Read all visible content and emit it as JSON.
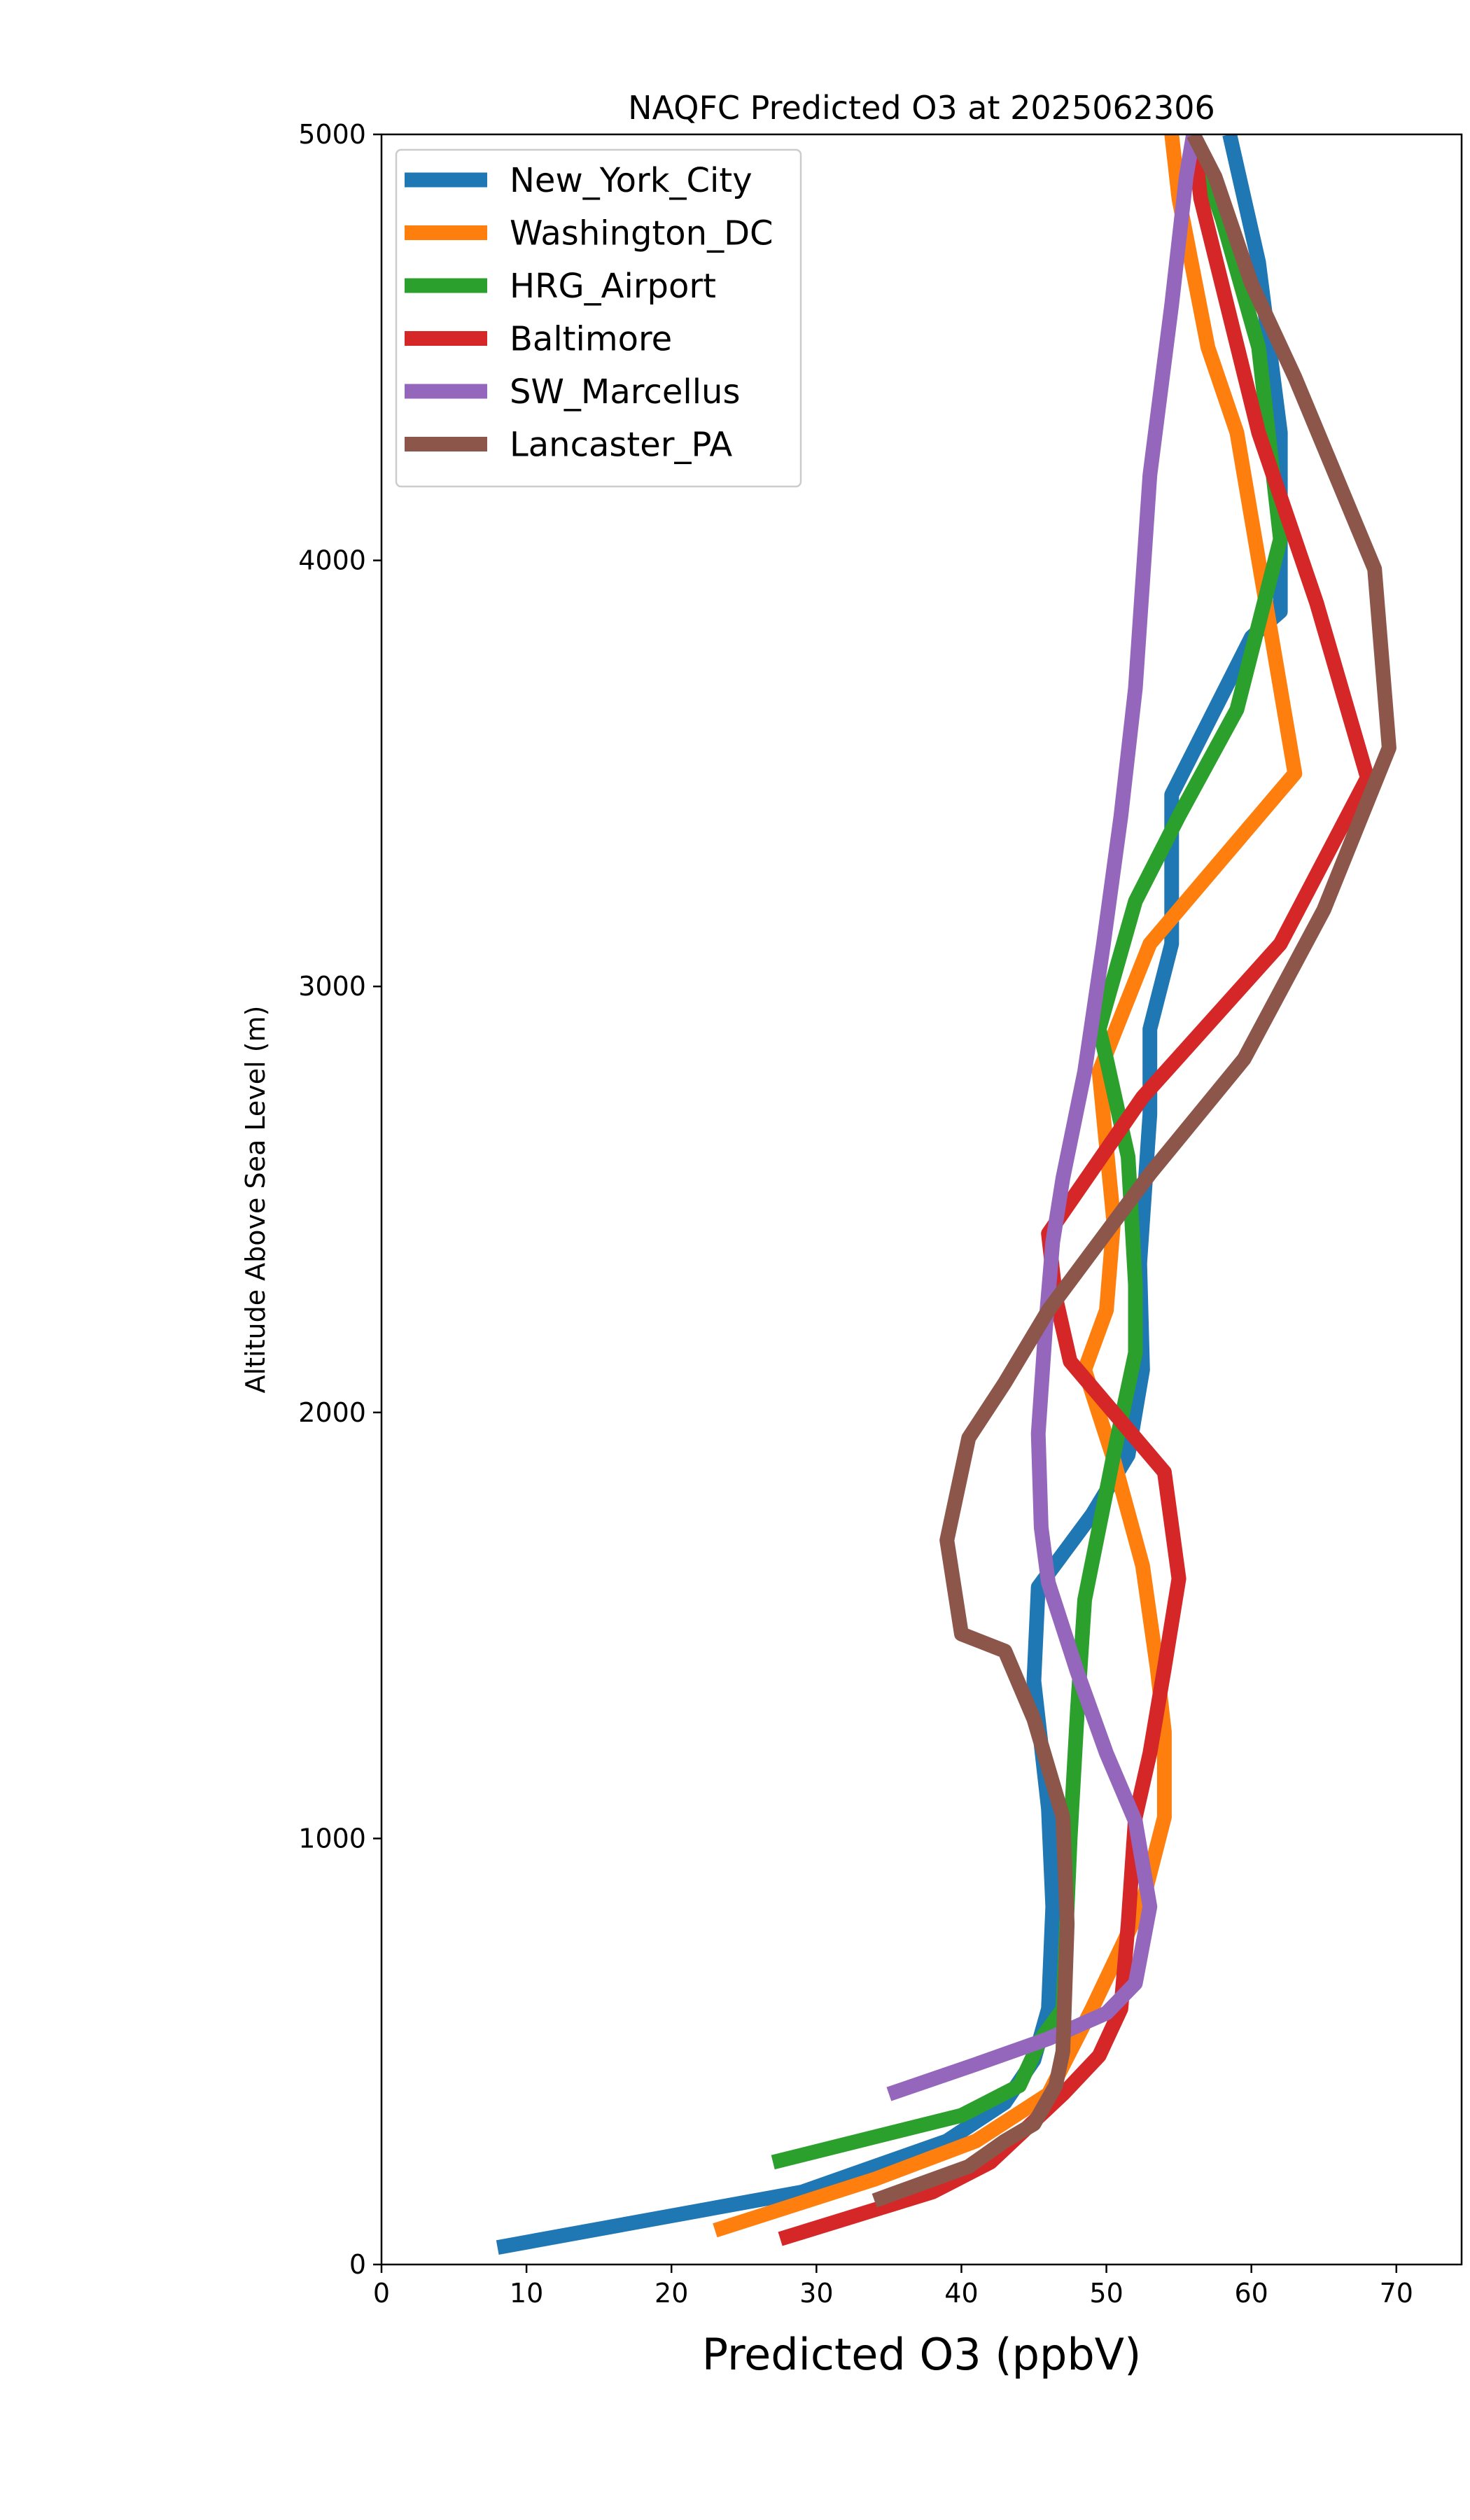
{
  "chart_data": {
    "type": "line",
    "title": "NAQFC Predicted O3 at 2025062306",
    "xlabel": "Predicted O3 (ppbV)",
    "ylabel": "Altitude Above Sea Level (m)",
    "xlim": [
      0,
      74.5
    ],
    "ylim": [
      0,
      5000
    ],
    "xticks": [
      0,
      10,
      20,
      30,
      40,
      50,
      60,
      70
    ],
    "yticks": [
      0,
      1000,
      2000,
      3000,
      4000,
      5000
    ],
    "grid": false,
    "legend_position": "top-left",
    "series": [
      {
        "name": "New_York_City",
        "color": "#1f77b4",
        "points": [
          [
            8,
            40
          ],
          [
            29,
            170
          ],
          [
            39,
            290
          ],
          [
            43,
            380
          ],
          [
            45,
            480
          ],
          [
            46,
            600
          ],
          [
            46.3,
            840
          ],
          [
            46,
            1070
          ],
          [
            45,
            1370
          ],
          [
            45.3,
            1590
          ],
          [
            49,
            1760
          ],
          [
            51.5,
            1900
          ],
          [
            52.5,
            2100
          ],
          [
            52.3,
            2350
          ],
          [
            53,
            2700
          ],
          [
            53,
            2900
          ],
          [
            54.5,
            3100
          ],
          [
            54.5,
            3450
          ],
          [
            60,
            3820
          ],
          [
            62,
            3880
          ],
          [
            62,
            4300
          ],
          [
            60.5,
            4700
          ],
          [
            58.5,
            5000
          ]
        ]
      },
      {
        "name": "Washington_DC",
        "color": "#ff7f0e",
        "points": [
          [
            23,
            80
          ],
          [
            34,
            200
          ],
          [
            41,
            290
          ],
          [
            46,
            400
          ],
          [
            49,
            600
          ],
          [
            52.5,
            850
          ],
          [
            54,
            1050
          ],
          [
            54,
            1250
          ],
          [
            53.5,
            1400
          ],
          [
            52.5,
            1640
          ],
          [
            50.5,
            1890
          ],
          [
            48.5,
            2100
          ],
          [
            50,
            2240
          ],
          [
            50.5,
            2450
          ],
          [
            49.5,
            2800
          ],
          [
            53,
            3100
          ],
          [
            63,
            3500
          ],
          [
            61,
            3900
          ],
          [
            59,
            4300
          ],
          [
            57,
            4500
          ],
          [
            55,
            4850
          ],
          [
            54.5,
            5000
          ]
        ]
      },
      {
        "name": "HRG_Airport",
        "color": "#2ca02c",
        "points": [
          [
            27,
            240
          ],
          [
            40,
            350
          ],
          [
            44,
            420
          ],
          [
            45.5,
            530
          ],
          [
            47,
            600
          ],
          [
            47.5,
            1000
          ],
          [
            48,
            1300
          ],
          [
            48.5,
            1560
          ],
          [
            50.5,
            1900
          ],
          [
            52,
            2140
          ],
          [
            52,
            2300
          ],
          [
            51.5,
            2600
          ],
          [
            50,
            2830
          ],
          [
            49.5,
            2900
          ],
          [
            52,
            3200
          ],
          [
            55,
            3400
          ],
          [
            59,
            3650
          ],
          [
            62,
            4050
          ],
          [
            60.5,
            4500
          ],
          [
            58,
            4800
          ],
          [
            56,
            5000
          ]
        ]
      },
      {
        "name": "Baltimore",
        "color": "#d62728",
        "points": [
          [
            27.5,
            60
          ],
          [
            38,
            170
          ],
          [
            42,
            240
          ],
          [
            47,
            400
          ],
          [
            49.5,
            490
          ],
          [
            51,
            600
          ],
          [
            51.5,
            800
          ],
          [
            52,
            1050
          ],
          [
            53,
            1200
          ],
          [
            54,
            1400
          ],
          [
            55,
            1610
          ],
          [
            54,
            1860
          ],
          [
            47.5,
            2120
          ],
          [
            46.5,
            2270
          ],
          [
            46,
            2420
          ],
          [
            52.5,
            2740
          ],
          [
            62,
            3100
          ],
          [
            68,
            3490
          ],
          [
            64.5,
            3900
          ],
          [
            60.5,
            4300
          ],
          [
            56.5,
            4850
          ],
          [
            56,
            5000
          ]
        ]
      },
      {
        "name": "SW_Marcellus",
        "color": "#9467bd",
        "points": [
          [
            35,
            400
          ],
          [
            41,
            470
          ],
          [
            46,
            530
          ],
          [
            50,
            590
          ],
          [
            52,
            660
          ],
          [
            53,
            840
          ],
          [
            52,
            1040
          ],
          [
            50,
            1200
          ],
          [
            48,
            1390
          ],
          [
            46,
            1600
          ],
          [
            45.5,
            1730
          ],
          [
            45.3,
            1950
          ],
          [
            45.8,
            2200
          ],
          [
            46.3,
            2400
          ],
          [
            47,
            2550
          ],
          [
            48.5,
            2800
          ],
          [
            49.8,
            3100
          ],
          [
            51,
            3400
          ],
          [
            52,
            3700
          ],
          [
            53,
            4200
          ],
          [
            54.5,
            4600
          ],
          [
            55.5,
            4900
          ],
          [
            56,
            5000
          ]
        ]
      },
      {
        "name": "Lancaster_PA",
        "color": "#8c564b",
        "points": [
          [
            34,
            150
          ],
          [
            40.5,
            230
          ],
          [
            43,
            290
          ],
          [
            45,
            330
          ],
          [
            46.5,
            420
          ],
          [
            47,
            500
          ],
          [
            47.3,
            800
          ],
          [
            47,
            1050
          ],
          [
            45,
            1280
          ],
          [
            43,
            1440
          ],
          [
            40,
            1480
          ],
          [
            39,
            1700
          ],
          [
            40.5,
            1940
          ],
          [
            43,
            2070
          ],
          [
            46,
            2240
          ],
          [
            53,
            2560
          ],
          [
            59.5,
            2830
          ],
          [
            65,
            3180
          ],
          [
            69.5,
            3560
          ],
          [
            68.5,
            3980
          ],
          [
            63,
            4430
          ],
          [
            60,
            4650
          ],
          [
            57.5,
            4900
          ],
          [
            56,
            5000
          ]
        ]
      }
    ]
  }
}
